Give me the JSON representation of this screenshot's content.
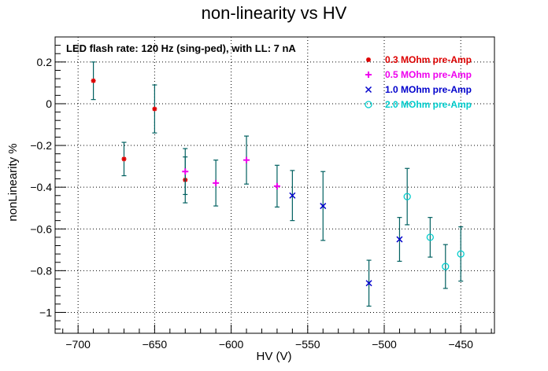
{
  "chart_data": {
    "type": "scatter",
    "title": "non-linearity vs HV",
    "xlabel": "HV (V)",
    "ylabel": "nonLinearity %",
    "xlim": [
      -715,
      -428
    ],
    "ylim": [
      -1.1,
      0.32
    ],
    "xticks": [
      -700,
      -650,
      -600,
      -550,
      -500,
      -450
    ],
    "yticks": [
      -1,
      -0.8,
      -0.6,
      -0.4,
      -0.2,
      0,
      0.2
    ],
    "xtick_labels": [
      "−700",
      "−650",
      "−600",
      "−550",
      "−500",
      "−450"
    ],
    "ytick_labels": [
      "−1",
      "−0.8",
      "−0.6",
      "−0.4",
      "−0.2",
      "0",
      "0.2"
    ],
    "grid": true,
    "legend_position": "top-right",
    "annotation": "LED flash rate: 120 Hz  (sing-ped), with LL: 7 nA",
    "error_bar_color": "#006060",
    "series": [
      {
        "name": "0.3 MOhm pre-Amp",
        "marker": "star",
        "color": "#dd0000",
        "points": [
          {
            "x": -690,
            "y": 0.11,
            "err": 0.09
          },
          {
            "x": -670,
            "y": -0.265,
            "err": 0.08
          },
          {
            "x": -650,
            "y": -0.025,
            "err": 0.115
          },
          {
            "x": -630,
            "y": -0.365,
            "err": 0.11
          }
        ]
      },
      {
        "name": "0.5 MOhm pre-Amp",
        "marker": "plus",
        "color": "#ee00ee",
        "points": [
          {
            "x": -630,
            "y": -0.325,
            "err": 0.11
          },
          {
            "x": -610,
            "y": -0.38,
            "err": 0.11
          },
          {
            "x": -590,
            "y": -0.27,
            "err": 0.115
          },
          {
            "x": -570,
            "y": -0.395,
            "err": 0.1
          }
        ]
      },
      {
        "name": "1.0 MOhm pre-Amp",
        "marker": "cross",
        "color": "#0000cc",
        "points": [
          {
            "x": -560,
            "y": -0.44,
            "err": 0.12
          },
          {
            "x": -540,
            "y": -0.49,
            "err": 0.165
          },
          {
            "x": -510,
            "y": -0.86,
            "err": 0.11
          },
          {
            "x": -490,
            "y": -0.65,
            "err": 0.105
          }
        ]
      },
      {
        "name": "2.0 MOhm pre-Amp",
        "marker": "circle",
        "color": "#00cccc",
        "points": [
          {
            "x": -485,
            "y": -0.445,
            "err": 0.135
          },
          {
            "x": -470,
            "y": -0.64,
            "err": 0.095
          },
          {
            "x": -460,
            "y": -0.78,
            "err": 0.105
          },
          {
            "x": -450,
            "y": -0.72,
            "err": 0.13
          }
        ]
      }
    ]
  }
}
